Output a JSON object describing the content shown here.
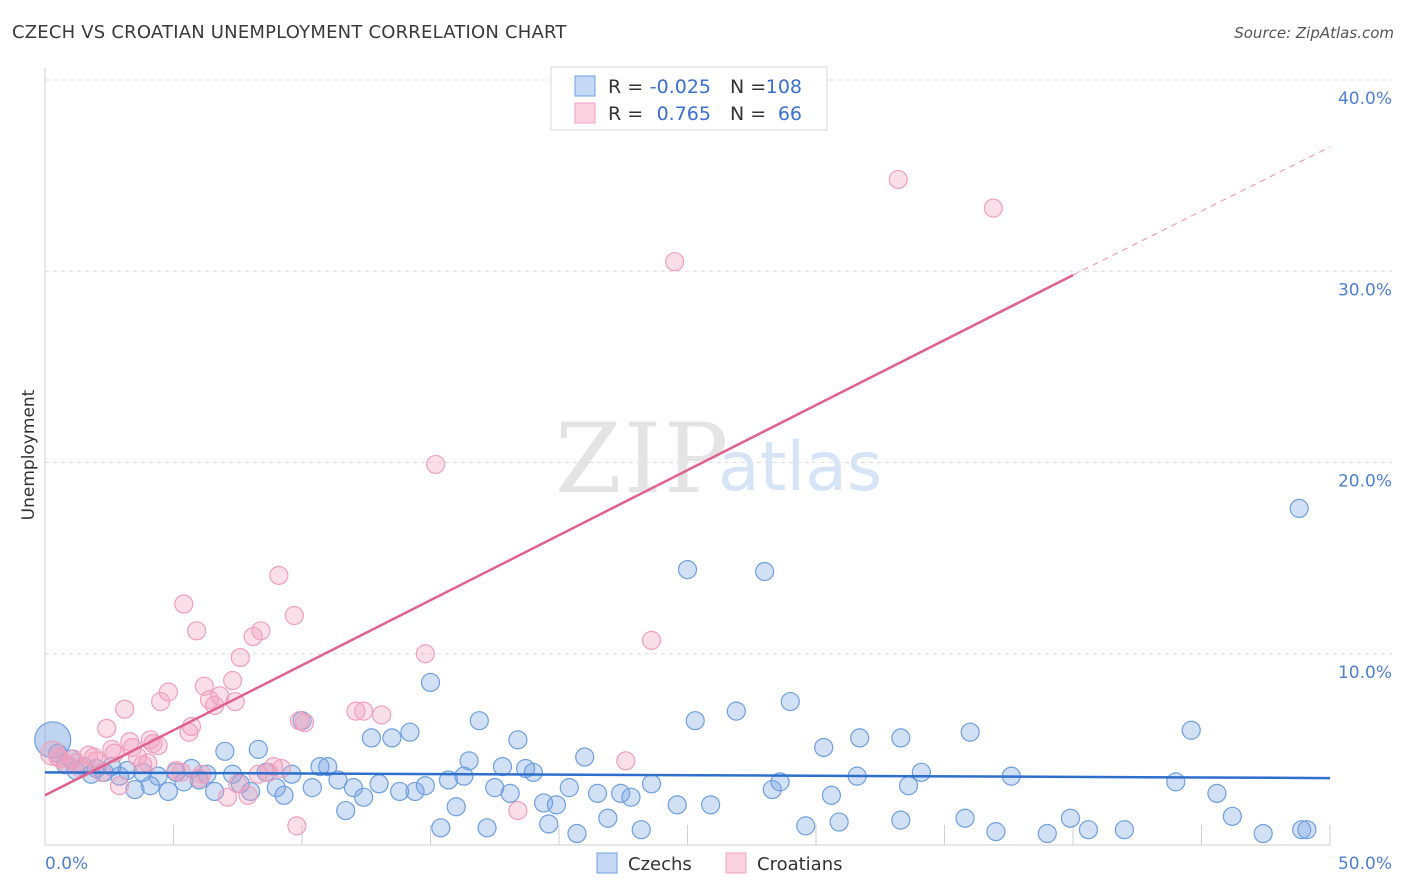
{
  "title": "CZECH VS CROATIAN UNEMPLOYMENT CORRELATION CHART",
  "source": "Source: ZipAtlas.com",
  "watermark": {
    "zip": "ZIP",
    "atlas": "atlas"
  },
  "colors": {
    "czech": "#6f9fe0",
    "czech_line": "#2f6fcc",
    "croatian": "#f0a0bc",
    "croatian_line": "#e0608e",
    "tick_text": "#4f7fcf"
  },
  "legend": {
    "rows": [
      {
        "r_label": "R =",
        "r_value": "-0.025",
        "n_label": "N =",
        "n_value": "108"
      },
      {
        "r_label": "R =",
        "r_value": "0.765",
        "n_label": "N =",
        "n_value": "66"
      }
    ]
  },
  "chart_data": {
    "type": "scatter",
    "ylabel": "Unemployment",
    "xlim": [
      0,
      50
    ],
    "ylim": [
      0,
      40
    ],
    "x_tick_labels": [
      "0.0%",
      "50.0%"
    ],
    "y_ticks": [
      10,
      20,
      30,
      40
    ],
    "y_tick_labels": [
      "10.0%",
      "20.0%",
      "30.0%",
      "40.0%"
    ],
    "grid": true,
    "legend_position": "top-center",
    "series": [
      {
        "name": "Czechs",
        "trend": {
          "x0": 0,
          "y0": 3.8,
          "x1": 50,
          "y1": 3.5
        },
        "points": [
          [
            0.3,
            5.5
          ],
          [
            0.5,
            4.8
          ],
          [
            0.8,
            4.2
          ],
          [
            1.0,
            4.5
          ],
          [
            1.2,
            3.9
          ],
          [
            1.5,
            4.1
          ],
          [
            1.8,
            3.7
          ],
          [
            2.0,
            4.0
          ],
          [
            2.3,
            3.8
          ],
          [
            2.6,
            4.1
          ],
          [
            2.9,
            3.6
          ],
          [
            3.2,
            3.9
          ],
          [
            3.5,
            2.9
          ],
          [
            3.8,
            3.8
          ],
          [
            4.1,
            3.1
          ],
          [
            4.4,
            3.6
          ],
          [
            4.8,
            2.8
          ],
          [
            5.1,
            3.8
          ],
          [
            5.4,
            3.3
          ],
          [
            5.7,
            4.0
          ],
          [
            6.0,
            3.4
          ],
          [
            6.3,
            3.7
          ],
          [
            6.6,
            2.8
          ],
          [
            7.0,
            4.9
          ],
          [
            7.3,
            3.7
          ],
          [
            7.6,
            3.2
          ],
          [
            8.0,
            2.8
          ],
          [
            8.3,
            5.0
          ],
          [
            8.6,
            3.8
          ],
          [
            9.0,
            3.0
          ],
          [
            9.3,
            2.6
          ],
          [
            9.6,
            3.7
          ],
          [
            10.0,
            6.5
          ],
          [
            10.4,
            3.0
          ],
          [
            10.7,
            4.1
          ],
          [
            11.0,
            4.1
          ],
          [
            11.4,
            3.4
          ],
          [
            11.7,
            1.8
          ],
          [
            12.0,
            3.0
          ],
          [
            12.4,
            2.5
          ],
          [
            12.7,
            5.6
          ],
          [
            13.0,
            3.2
          ],
          [
            13.5,
            5.6
          ],
          [
            13.8,
            2.8
          ],
          [
            14.2,
            5.9
          ],
          [
            14.4,
            2.8
          ],
          [
            14.8,
            3.1
          ],
          [
            15.0,
            8.5
          ],
          [
            15.4,
            0.9
          ],
          [
            15.7,
            3.4
          ],
          [
            16.0,
            2.0
          ],
          [
            16.3,
            3.6
          ],
          [
            16.5,
            4.4
          ],
          [
            16.9,
            6.5
          ],
          [
            17.2,
            0.9
          ],
          [
            17.5,
            3.0
          ],
          [
            17.8,
            4.1
          ],
          [
            18.1,
            2.7
          ],
          [
            18.4,
            5.5
          ],
          [
            18.7,
            4.0
          ],
          [
            19.0,
            3.8
          ],
          [
            19.4,
            2.2
          ],
          [
            19.6,
            1.1
          ],
          [
            19.9,
            2.1
          ],
          [
            20.4,
            3.0
          ],
          [
            20.7,
            0.6
          ],
          [
            21.0,
            4.6
          ],
          [
            21.5,
            2.7
          ],
          [
            21.9,
            1.4
          ],
          [
            22.4,
            2.7
          ],
          [
            22.8,
            2.5
          ],
          [
            23.2,
            0.8
          ],
          [
            23.6,
            3.2
          ],
          [
            24.6,
            2.1
          ],
          [
            25.0,
            14.4
          ],
          [
            25.3,
            6.5
          ],
          [
            25.9,
            2.1
          ],
          [
            26.9,
            7.0
          ],
          [
            28.0,
            14.3
          ],
          [
            28.3,
            2.9
          ],
          [
            28.6,
            3.3
          ],
          [
            29.0,
            7.5
          ],
          [
            29.6,
            1.0
          ],
          [
            30.3,
            5.1
          ],
          [
            30.6,
            2.6
          ],
          [
            30.9,
            1.2
          ],
          [
            31.6,
            3.6
          ],
          [
            31.7,
            5.6
          ],
          [
            33.3,
            1.3
          ],
          [
            33.3,
            5.6
          ],
          [
            33.6,
            3.1
          ],
          [
            34.1,
            3.8
          ],
          [
            35.8,
            1.4
          ],
          [
            36.0,
            5.9
          ],
          [
            37.0,
            0.7
          ],
          [
            37.6,
            3.6
          ],
          [
            39.0,
            0.6
          ],
          [
            39.9,
            1.4
          ],
          [
            40.6,
            0.8
          ],
          [
            42.0,
            0.8
          ],
          [
            44.0,
            3.3
          ],
          [
            44.6,
            6.0
          ],
          [
            45.6,
            2.7
          ],
          [
            46.2,
            1.5
          ],
          [
            47.4,
            0.6
          ],
          [
            48.8,
            17.6
          ],
          [
            48.9,
            0.8
          ],
          [
            49.1,
            0.8
          ]
        ]
      },
      {
        "name": "Croatians",
        "trend": {
          "x0": 0,
          "y0": 2.6,
          "x1": 40,
          "y1": 29.8,
          "dash_x1": 50,
          "dash_y1": 36.5
        },
        "points": [
          [
            0.3,
            4.8
          ],
          [
            0.6,
            4.5
          ],
          [
            0.9,
            4.2
          ],
          [
            1.2,
            4.3
          ],
          [
            1.4,
            4.0
          ],
          [
            1.7,
            4.7
          ],
          [
            2.0,
            4.4
          ],
          [
            2.2,
            3.8
          ],
          [
            2.4,
            6.1
          ],
          [
            2.7,
            4.8
          ],
          [
            2.9,
            3.1
          ],
          [
            3.1,
            7.1
          ],
          [
            3.3,
            5.4
          ],
          [
            3.6,
            4.6
          ],
          [
            3.8,
            4.2
          ],
          [
            4.1,
            5.5
          ],
          [
            4.2,
            5.3
          ],
          [
            4.5,
            7.5
          ],
          [
            4.8,
            8.0
          ],
          [
            5.1,
            3.9
          ],
          [
            5.4,
            12.6
          ],
          [
            5.6,
            5.9
          ],
          [
            5.7,
            6.2
          ],
          [
            5.9,
            11.2
          ],
          [
            6.1,
            3.7
          ],
          [
            6.2,
            8.3
          ],
          [
            6.4,
            7.6
          ],
          [
            6.6,
            7.3
          ],
          [
            6.8,
            7.8
          ],
          [
            7.1,
            2.5
          ],
          [
            7.3,
            8.6
          ],
          [
            7.6,
            9.8
          ],
          [
            7.9,
            2.6
          ],
          [
            8.1,
            10.9
          ],
          [
            8.4,
            11.2
          ],
          [
            8.7,
            3.8
          ],
          [
            9.1,
            14.1
          ],
          [
            9.2,
            4.0
          ],
          [
            9.7,
            12.0
          ],
          [
            9.8,
            1.0
          ],
          [
            10.1,
            6.4
          ],
          [
            12.1,
            7.0
          ],
          [
            12.4,
            7.0
          ],
          [
            13.1,
            6.8
          ],
          [
            14.8,
            10.0
          ],
          [
            15.2,
            19.9
          ],
          [
            18.4,
            1.8
          ],
          [
            22.6,
            4.4
          ],
          [
            23.6,
            10.7
          ],
          [
            24.5,
            30.5
          ],
          [
            33.2,
            34.8
          ],
          [
            36.9,
            33.3
          ],
          [
            0.5,
            4.6
          ],
          [
            1.1,
            4.5
          ],
          [
            1.9,
            4.6
          ],
          [
            2.6,
            5.0
          ],
          [
            3.4,
            5.1
          ],
          [
            4.0,
            4.3
          ],
          [
            4.4,
            5.2
          ],
          [
            5.3,
            3.8
          ],
          [
            6.0,
            3.5
          ],
          [
            7.4,
            7.5
          ],
          [
            7.5,
            3.2
          ],
          [
            8.3,
            3.7
          ],
          [
            8.9,
            4.1
          ],
          [
            9.9,
            6.5
          ]
        ]
      }
    ]
  }
}
